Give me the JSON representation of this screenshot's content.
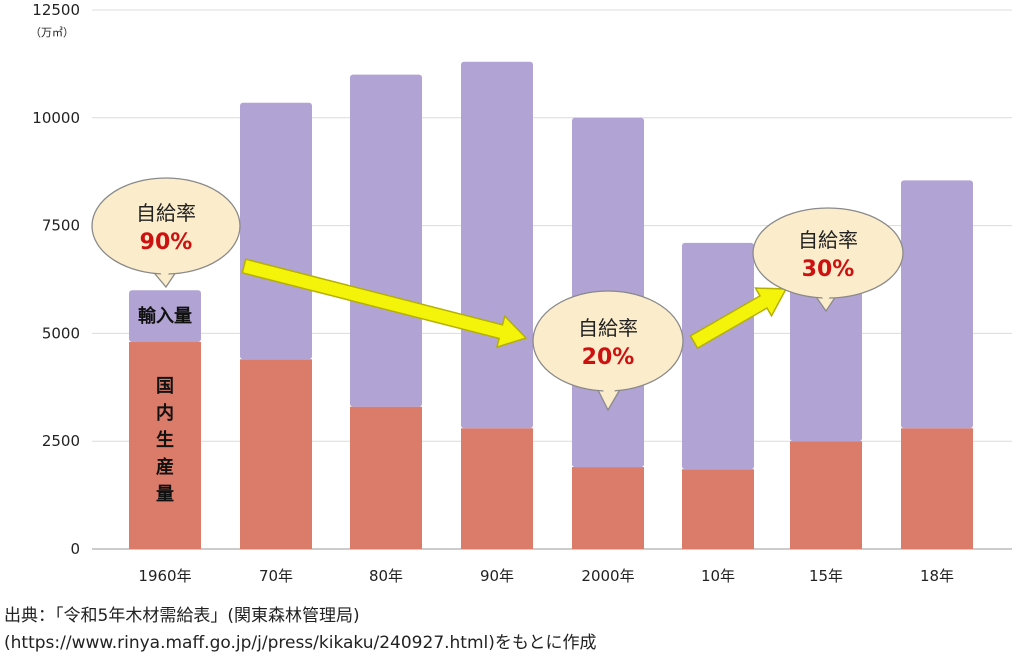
{
  "chart_data": {
    "type": "bar",
    "stacked": true,
    "categories": [
      "1960年",
      "70年",
      "80年",
      "90年",
      "2000年",
      "10年",
      "15年",
      "18年"
    ],
    "series": [
      {
        "name": "国内生産量",
        "values": [
          4800,
          4400,
          3300,
          2800,
          1900,
          1850,
          2500,
          2800
        ],
        "color": "#db7b69"
      },
      {
        "name": "輸入量",
        "values": [
          1200,
          5950,
          7700,
          8500,
          8100,
          5250,
          4000,
          5750
        ],
        "color": "#b1a3d4"
      }
    ],
    "ylim": [
      0,
      12500
    ],
    "yticks": [
      0,
      2500,
      5000,
      7500,
      10000,
      12500
    ],
    "y_unit": "（万㎥）",
    "grid": true,
    "annotations": {
      "domestic_label": "国内生産量",
      "import_label": "輸入量",
      "bubbles": [
        {
          "title": "自給率",
          "value": "90%"
        },
        {
          "title": "自給率",
          "value": "20%"
        },
        {
          "title": "自給率",
          "value": "30%"
        }
      ]
    }
  },
  "source": {
    "line1": "出典：「令和5年木材需給表」(関東森林管理局)",
    "line2": "(https://www.rinya.maff.go.jp/j/press/kikaku/240927.html)をもとに作成"
  },
  "colors": {
    "arrow": "#f4f40a",
    "bubble_fill": "#fbeccb",
    "grid": "#dcdcdc"
  }
}
